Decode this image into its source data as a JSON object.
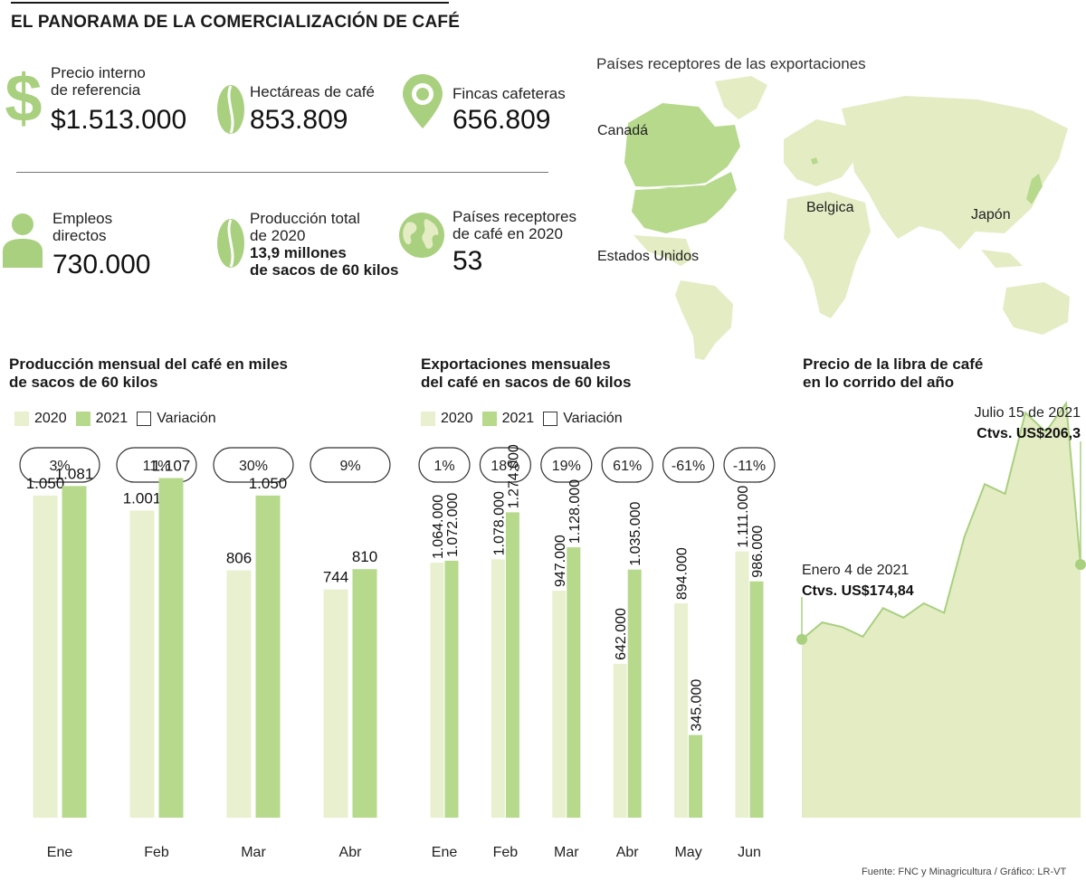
{
  "header": {
    "title": "EL PANORAMA DE LA COMERCIALIZACIÓN DE CAFÉ"
  },
  "stats": {
    "precio": {
      "label_line1": "Precio interno",
      "label_line2": "de referencia",
      "value": "$1.513.000",
      "icon": "dollar-icon"
    },
    "hectareas": {
      "label": "Hectáreas de café",
      "value": "853.809",
      "icon": "coffee-bean-icon"
    },
    "fincas": {
      "label": "Fincas cafeteras",
      "value": "656.809",
      "icon": "location-pin-icon"
    },
    "empleos": {
      "label_line1": "Empleos",
      "label_line2": "directos",
      "value": "730.000",
      "icon": "person-icon"
    },
    "produccion": {
      "label_line1": "Producción total",
      "label_line2": "de 2020",
      "value_line1": "13,9 millones",
      "value_line2": "de sacos de 60 kilos",
      "icon": "coffee-bean-icon"
    },
    "paises": {
      "label_line1": "Países receptores",
      "label_line2": "de café en 2020",
      "value": "53",
      "icon": "globe-icon"
    }
  },
  "map": {
    "title": "Países receptores de las exportaciones",
    "labels": {
      "canada": "Canadá",
      "usa": "Estados Unidos",
      "belgica": "Belgica",
      "japon": "Japón"
    },
    "colors": {
      "land": "#e4ecc4",
      "highlight": "#b6d98c"
    }
  },
  "legend": {
    "y2020": "2020",
    "y2021": "2021",
    "variacion": "Variación"
  },
  "chart_data": [
    {
      "type": "bar",
      "title": "Producción mensual del café en miles de sacos de 60 kilos",
      "title_line1": "Producción mensual del café en miles",
      "title_line2": "de sacos de 60 kilos",
      "categories": [
        "Ene",
        "Feb",
        "Mar",
        "Abr"
      ],
      "series": [
        {
          "name": "2020",
          "values": [
            1050,
            1001,
            806,
            744
          ],
          "labels": [
            "1.050",
            "1.001",
            "806",
            "744"
          ],
          "color": "#e9f0cf"
        },
        {
          "name": "2021",
          "values": [
            1081,
            1107,
            1050,
            810
          ],
          "labels": [
            "1.081",
            "1.107",
            "1.050",
            "810"
          ],
          "color": "#b6d98c"
        }
      ],
      "variation": [
        "3%",
        "11%",
        "30%",
        "9%"
      ],
      "ylim": [
        0,
        1250
      ]
    },
    {
      "type": "bar",
      "title": "Exportaciones mensuales del café en sacos de 60 kilos",
      "title_line1": "Exportaciones mensuales",
      "title_line2": "del café en sacos de 60 kilos",
      "categories": [
        "Ene",
        "Feb",
        "Mar",
        "Abr",
        "May",
        "Jun"
      ],
      "series": [
        {
          "name": "2020",
          "values": [
            1064000,
            1078000,
            947000,
            642000,
            894000,
            1111000
          ],
          "labels": [
            "1.064.000",
            "1.078.000",
            "947.000",
            "642.000",
            "894.000",
            "1.111.000"
          ],
          "color": "#e9f0cf"
        },
        {
          "name": "2021",
          "values": [
            1072000,
            1274000,
            1128000,
            1035000,
            345000,
            986000
          ],
          "labels": [
            "1.072.000",
            "1.274.000",
            "1.128.000",
            "1.035.000",
            "345.000",
            "986.000"
          ],
          "color": "#b6d98c"
        }
      ],
      "variation": [
        "1%",
        "18%",
        "19%",
        "61%",
        "-61%",
        "-11%"
      ],
      "ylim": [
        0,
        1600000
      ]
    },
    {
      "type": "area",
      "title": "Precio de la libra de café en lo corrido del año",
      "title_line1": "Precio de la libra de café",
      "title_line2": "en lo corrido del año",
      "x": [
        "2021-01-04",
        "2021-01-18",
        "2021-02-01",
        "2021-02-15",
        "2021-03-01",
        "2021-03-15",
        "2021-03-29",
        "2021-04-12",
        "2021-04-26",
        "2021-05-10",
        "2021-05-24",
        "2021-06-07",
        "2021-06-21",
        "2021-07-05",
        "2021-07-15"
      ],
      "values": [
        174.84,
        182,
        180,
        176,
        188,
        184,
        190,
        186,
        218,
        240,
        236,
        270,
        262,
        274,
        206.3
      ],
      "ylim": [
        100,
        280
      ],
      "annotations": [
        {
          "line1": "Enero 4 de 2021",
          "line2": "Ctvs. US$174,84"
        },
        {
          "line1": "Julio 15 de 2021",
          "line2": "Ctvs. US$206,3"
        }
      ],
      "color": "#e4ecc4",
      "line_color": "#a9d07f"
    }
  ],
  "source": "Fuente: FNC y Minagricultura / Gráfico: LR-VT"
}
